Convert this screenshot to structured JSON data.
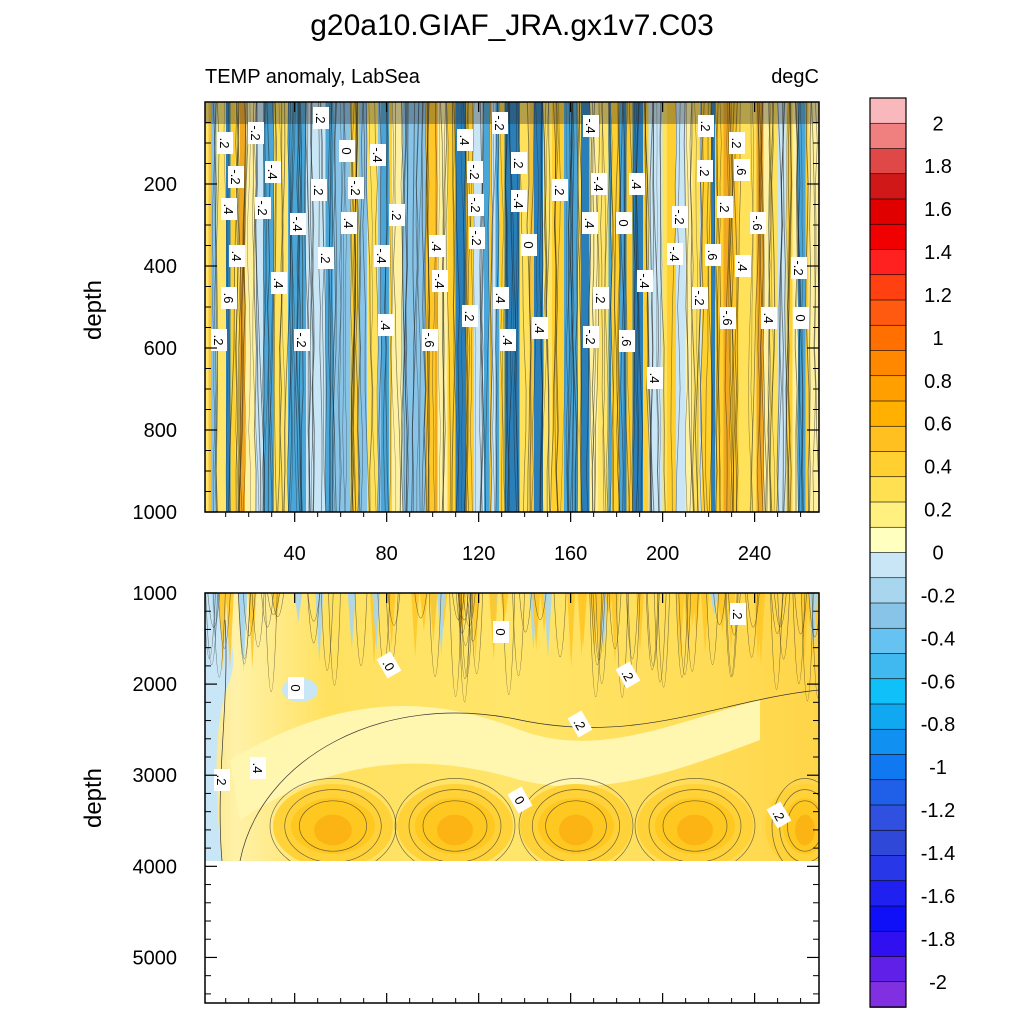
{
  "chart_data": {
    "type": "heatmap",
    "title": "g20a10.GIAF_JRA.gx1v7.C03",
    "subtitle_left": "TEMP anomaly, LabSea",
    "subtitle_right": "degC",
    "panels": [
      {
        "name": "upper",
        "ylabel": "depth",
        "ylim": [
          1000,
          0
        ],
        "xlim": [
          1,
          268
        ],
        "yticks": [
          200,
          400,
          600,
          800,
          1000
        ],
        "xticks": [
          40,
          80,
          120,
          160,
          200,
          240
        ]
      },
      {
        "name": "lower",
        "ylabel": "depth",
        "ylim": [
          5500,
          1000
        ],
        "xlim": [
          1,
          268
        ],
        "yticks": [
          1000,
          2000,
          3000,
          4000,
          5000
        ],
        "data_max_depth": 3850
      }
    ],
    "colorbar": {
      "levels": [
        -2,
        -1.8,
        -1.6,
        -1.4,
        -1.2,
        -1,
        -0.8,
        -0.6,
        -0.4,
        -0.2,
        0,
        0.2,
        0.4,
        0.6,
        0.8,
        1,
        1.2,
        1.4,
        1.6,
        1.8,
        2
      ],
      "labels": [
        "2",
        "1.8",
        "1.6",
        "1.4",
        "1.2",
        "1",
        "0.8",
        "0.6",
        "0.4",
        "0.2",
        "0",
        "-0.2",
        "-0.4",
        "-0.6",
        "-0.8",
        "-1",
        "-1.2",
        "-1.4",
        "-1.6",
        "-1.8",
        "-2"
      ],
      "colors": [
        "#f9b8bb",
        "#f08080",
        "#e04848",
        "#d01818",
        "#e00000",
        "#f00000",
        "#ff2020",
        "#ff4010",
        "#ff5a10",
        "#ff7000",
        "#ff8800",
        "#ffa000",
        "#ffb000",
        "#ffc020",
        "#ffd030",
        "#ffe050",
        "#fff080",
        "#ffffc0",
        "#c8e6f5",
        "#a8d6ee",
        "#88c4e8",
        "#66c2f0",
        "#40b8f0",
        "#10c0f8",
        "#10a8f0",
        "#1090f0",
        "#1078f0",
        "#2060e8",
        "#3050e0",
        "#3048d8",
        "#2838e8",
        "#2020f0",
        "#1010f8",
        "#3010f0",
        "#6020e8",
        "#8030e0"
      ]
    },
    "contour_labels_upper": [
      ".2",
      "-.2",
      ".2",
      "0",
      "-.4",
      "-.2",
      ".4",
      "-.4",
      ".2",
      ".2",
      "-.2",
      "-.4",
      ".2",
      "-.2",
      ".2",
      "-.2",
      ".2",
      "-.4",
      ".4",
      ".2",
      ".6",
      ".4",
      "-.2",
      "-.4",
      ".4",
      ".2",
      "-.2",
      "-.4",
      ".4",
      "0",
      "-.2",
      ".2",
      "-.6",
      ".4",
      ".2",
      "-.4",
      ".4",
      "-.2",
      "0",
      "-.4",
      ".6",
      ".4",
      "-.2",
      ".6",
      ".4",
      "-.4",
      ".4",
      ".2",
      "-.4",
      "-.2",
      "-.6",
      ".4",
      "0",
      ".2",
      "-.2",
      ".4",
      "-.6",
      ".2",
      ".4",
      ".4",
      "-.2",
      ".6",
      ".4",
      ".4",
      ".6"
    ],
    "contour_labels_lower": [
      ".2",
      ".0",
      "0",
      ".2",
      "0",
      ".2",
      ".2",
      "0",
      ".2",
      ".2",
      ".4"
    ]
  }
}
